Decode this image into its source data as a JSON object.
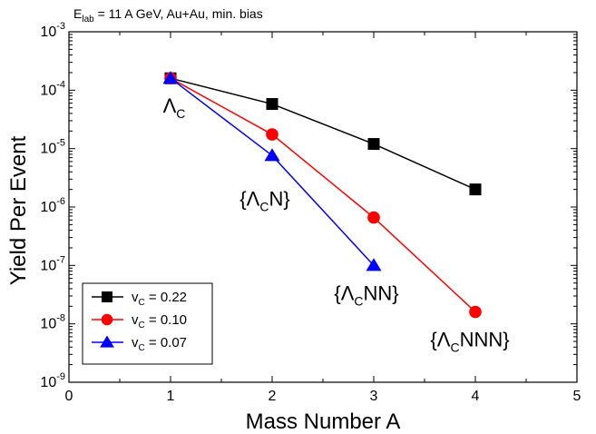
{
  "chart_data": {
    "type": "line",
    "title": "",
    "header_main": "E",
    "header_sub": "lab",
    "header_rest": " = 11 A GeV, Au+Au, min. bias",
    "xlabel": "Mass Number A",
    "ylabel": "Yield Per Event",
    "xlim": [
      0,
      5
    ],
    "ylim": [
      1e-09,
      0.001
    ],
    "yscale": "log",
    "grid": false,
    "legend_position": "bottom-left",
    "x_ticks": [
      "0",
      "1",
      "2",
      "3",
      "4",
      "5"
    ],
    "y_ticks": [
      {
        "base": "10",
        "exp": "-9"
      },
      {
        "base": "10",
        "exp": "-8"
      },
      {
        "base": "10",
        "exp": "-7"
      },
      {
        "base": "10",
        "exp": "-6"
      },
      {
        "base": "10",
        "exp": "-5"
      },
      {
        "base": "10",
        "exp": "-4"
      },
      {
        "base": "10",
        "exp": "-3"
      }
    ],
    "series": [
      {
        "label_main": "v",
        "label_sub": "C",
        "label_rest": " = 0.22",
        "color": "#000000",
        "marker": "square",
        "x": [
          1,
          2,
          3,
          4
        ],
        "y": [
          0.00016,
          5.8e-05,
          1.2e-05,
          2e-06
        ]
      },
      {
        "label_main": "v",
        "label_sub": "C",
        "label_rest": " = 0.10",
        "color": "#ff0000",
        "marker": "circle",
        "x": [
          1,
          2,
          3,
          4
        ],
        "y": [
          0.00016,
          1.75e-05,
          6.6e-07,
          1.6e-08
        ]
      },
      {
        "label_main": "v",
        "label_sub": "C",
        "label_rest": " = 0.07",
        "color": "#0000ff",
        "marker": "triangle",
        "x": [
          1,
          2,
          3
        ],
        "y": [
          0.00016,
          7.6e-06,
          1e-07
        ]
      }
    ],
    "annotations": [
      {
        "x": 1,
        "y": 0.00016,
        "pre": "",
        "main": "Λ",
        "sub": "C",
        "post": ""
      },
      {
        "x": 2,
        "y": 7.6e-06,
        "pre": "{",
        "main": "Λ",
        "sub": "C",
        "post": "N}"
      },
      {
        "x": 3,
        "y": 1e-07,
        "pre": "{",
        "main": "Λ",
        "sub": "C",
        "post": "NN}"
      },
      {
        "x": 4,
        "y": 1.6e-08,
        "pre": "{",
        "main": "Λ",
        "sub": "C",
        "post": "NNN}"
      }
    ]
  }
}
